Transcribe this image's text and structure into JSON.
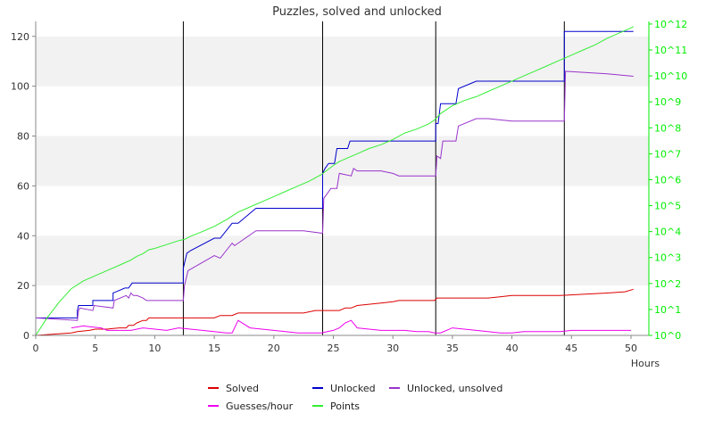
{
  "chart_data": {
    "type": "line",
    "title": "Puzzles, solved and unlocked",
    "xlabel": "Hours",
    "ylabel": "",
    "x_ticks": [
      0,
      5,
      10,
      15,
      20,
      25,
      30,
      35,
      40,
      45,
      50
    ],
    "y_ticks": [
      0,
      20,
      40,
      60,
      80,
      100,
      120
    ],
    "xlim": [
      0,
      51.5
    ],
    "ylim": [
      0,
      126
    ],
    "y2": {
      "scale": "log",
      "tick_labels": [
        "10^0",
        "10^1",
        "10^2",
        "10^3",
        "10^4",
        "10^5",
        "10^6",
        "10^7",
        "10^8",
        "10^9",
        "10^10",
        "10^11",
        "10^12"
      ],
      "tick_exponents": [
        0,
        1,
        2,
        3,
        4,
        5,
        6,
        7,
        8,
        9,
        10,
        11,
        12
      ],
      "exp_range": [
        0,
        12.1
      ],
      "color": "#00ee00"
    },
    "grid": "horizontal alternating bands",
    "legend_position": "bottom",
    "event_markers_x": [
      12.4,
      24.1,
      33.6,
      44.4
    ],
    "series": [
      {
        "name": "Solved",
        "color": "#dd0000",
        "axis": "left",
        "x": [
          0,
          1.5,
          3,
          3.5,
          4.5,
          5,
          6,
          7,
          7.6,
          7.8,
          8.2,
          8.5,
          9,
          9.3,
          9.5,
          12,
          14,
          15,
          15.5,
          16,
          16.5,
          17,
          18,
          20,
          22,
          22.5,
          23.5,
          24,
          24.5,
          25.5,
          26,
          26.5,
          27,
          28,
          29,
          30,
          30.5,
          31,
          33.5,
          33.7,
          35,
          36,
          37,
          38,
          39,
          40,
          42,
          44,
          46,
          48,
          49.5,
          50.2
        ],
        "values": [
          0,
          0.5,
          1,
          1.5,
          2,
          2.5,
          2.5,
          3,
          3,
          4,
          4,
          5,
          6,
          6,
          7,
          7,
          7,
          7,
          8,
          8,
          8,
          9,
          9,
          9,
          9,
          9,
          10,
          10,
          10,
          10,
          11,
          11,
          12,
          12.5,
          13,
          13.5,
          14,
          14,
          14,
          15,
          15,
          15,
          15,
          15,
          15.5,
          16,
          16,
          16,
          16.5,
          17,
          17.5,
          18.5
        ]
      },
      {
        "name": "Unlocked",
        "color": "#0000cc",
        "axis": "left",
        "x": [
          0,
          3.5,
          3.5,
          3.6,
          3.8,
          4.8,
          4.8,
          6.5,
          6.5,
          7.5,
          7.8,
          8.1,
          8.3,
          12.4,
          12.4,
          12.7,
          13,
          15,
          15.5,
          16,
          16.5,
          17,
          17.5,
          18,
          18.5,
          24.1,
          24.1,
          24.3,
          24.6,
          25.1,
          25.3,
          26.2,
          26.4,
          33.6,
          33.6,
          33.8,
          34,
          35.3,
          35.5,
          37,
          44.4,
          44.4,
          50.2
        ],
        "values": [
          7,
          7,
          10,
          12,
          12,
          12,
          14,
          14,
          17,
          19,
          19,
          21,
          21,
          21,
          27,
          33,
          34,
          39,
          39,
          42,
          45,
          45,
          47,
          49,
          51,
          51,
          65,
          67,
          69,
          69,
          75,
          75,
          78,
          78,
          85,
          85,
          93,
          93,
          99,
          102,
          102,
          122,
          122
        ]
      },
      {
        "name": "Unlocked, unsolved",
        "color": "#9933cc",
        "axis": "left",
        "x": [
          0,
          3.5,
          3.6,
          3.7,
          4.8,
          4.9,
          6.5,
          6.6,
          7.6,
          7.8,
          8,
          8.2,
          8.5,
          9,
          9.3,
          9.5,
          12.4,
          12.5,
          12.8,
          15,
          15.5,
          16,
          16.5,
          16.7,
          17,
          18.5,
          22,
          22.5,
          24.1,
          24.2,
          24.5,
          24.8,
          25.3,
          25.5,
          26.5,
          26.7,
          27,
          29,
          30,
          30.5,
          33.6,
          33.7,
          34,
          34.2,
          35.3,
          35.5,
          37,
          38,
          40,
          42,
          44.4,
          44.5,
          48,
          50.2
        ],
        "values": [
          7,
          6,
          10,
          11,
          10,
          12,
          11,
          14,
          16,
          15,
          17,
          16,
          16,
          15,
          14,
          14,
          14,
          20,
          26,
          32,
          31,
          34,
          37,
          36,
          37,
          42,
          42,
          42,
          41,
          55,
          57,
          59,
          59,
          65,
          64,
          67,
          66,
          66,
          65,
          64,
          64,
          72,
          71,
          78,
          78,
          84,
          87,
          87,
          86,
          86,
          86,
          106,
          105,
          104
        ]
      },
      {
        "name": "Guesses/hour",
        "color": "#ee00ee",
        "axis": "left",
        "x": [
          3,
          4,
          4.5,
          5.5,
          6,
          7,
          8,
          9,
          10,
          11,
          12,
          13,
          14,
          15,
          16,
          16.5,
          17,
          18,
          19,
          20,
          21,
          22,
          23,
          24,
          24.5,
          25,
          25.5,
          26,
          26.5,
          27,
          28,
          29,
          30,
          31,
          32,
          33,
          33.5,
          34,
          35,
          36,
          37,
          38,
          39,
          40,
          41,
          42,
          43,
          44,
          45,
          46,
          47,
          48,
          49,
          50
        ],
        "values": [
          3,
          3.8,
          3.5,
          3,
          2,
          2,
          2,
          3,
          2.5,
          2,
          3,
          2.5,
          2,
          1.5,
          1,
          1,
          6,
          3,
          2.5,
          2,
          1.5,
          1,
          1,
          1,
          1.5,
          2,
          3,
          5,
          6,
          3,
          2.5,
          2,
          2,
          2,
          1.5,
          1.5,
          1,
          1,
          3,
          2.5,
          2,
          1.5,
          1,
          1,
          1.5,
          1.5,
          1.5,
          1.5,
          2,
          2,
          2,
          2,
          2,
          2
        ]
      },
      {
        "name": "Points",
        "color": "#33ee33",
        "axis": "right_log",
        "x": [
          0,
          1,
          2,
          3,
          4,
          5,
          6,
          7,
          7.5,
          8,
          8.5,
          9,
          9.5,
          10,
          11,
          12,
          12.5,
          13,
          14,
          15,
          16,
          17,
          18,
          19,
          20,
          21,
          22,
          23,
          24,
          25,
          25.5,
          26,
          27,
          28,
          29,
          30,
          31,
          32,
          33,
          33.5,
          34,
          35,
          36,
          37,
          38,
          39,
          40,
          41,
          42,
          43,
          44,
          45,
          46,
          47,
          48,
          49,
          50,
          50.2
        ],
        "values": [
          0,
          0.7,
          1.3,
          1.8,
          2.1,
          2.3,
          2.5,
          2.7,
          2.8,
          2.9,
          3.05,
          3.15,
          3.3,
          3.35,
          3.5,
          3.65,
          3.7,
          3.82,
          4,
          4.2,
          4.45,
          4.75,
          4.95,
          5.15,
          5.35,
          5.55,
          5.75,
          5.95,
          6.2,
          6.55,
          6.7,
          6.8,
          7,
          7.2,
          7.35,
          7.55,
          7.8,
          7.95,
          8.15,
          8.3,
          8.55,
          8.85,
          9.05,
          9.2,
          9.4,
          9.6,
          9.8,
          10,
          10.2,
          10.4,
          10.6,
          10.8,
          11,
          11.2,
          11.45,
          11.65,
          11.85,
          11.9
        ]
      }
    ]
  }
}
